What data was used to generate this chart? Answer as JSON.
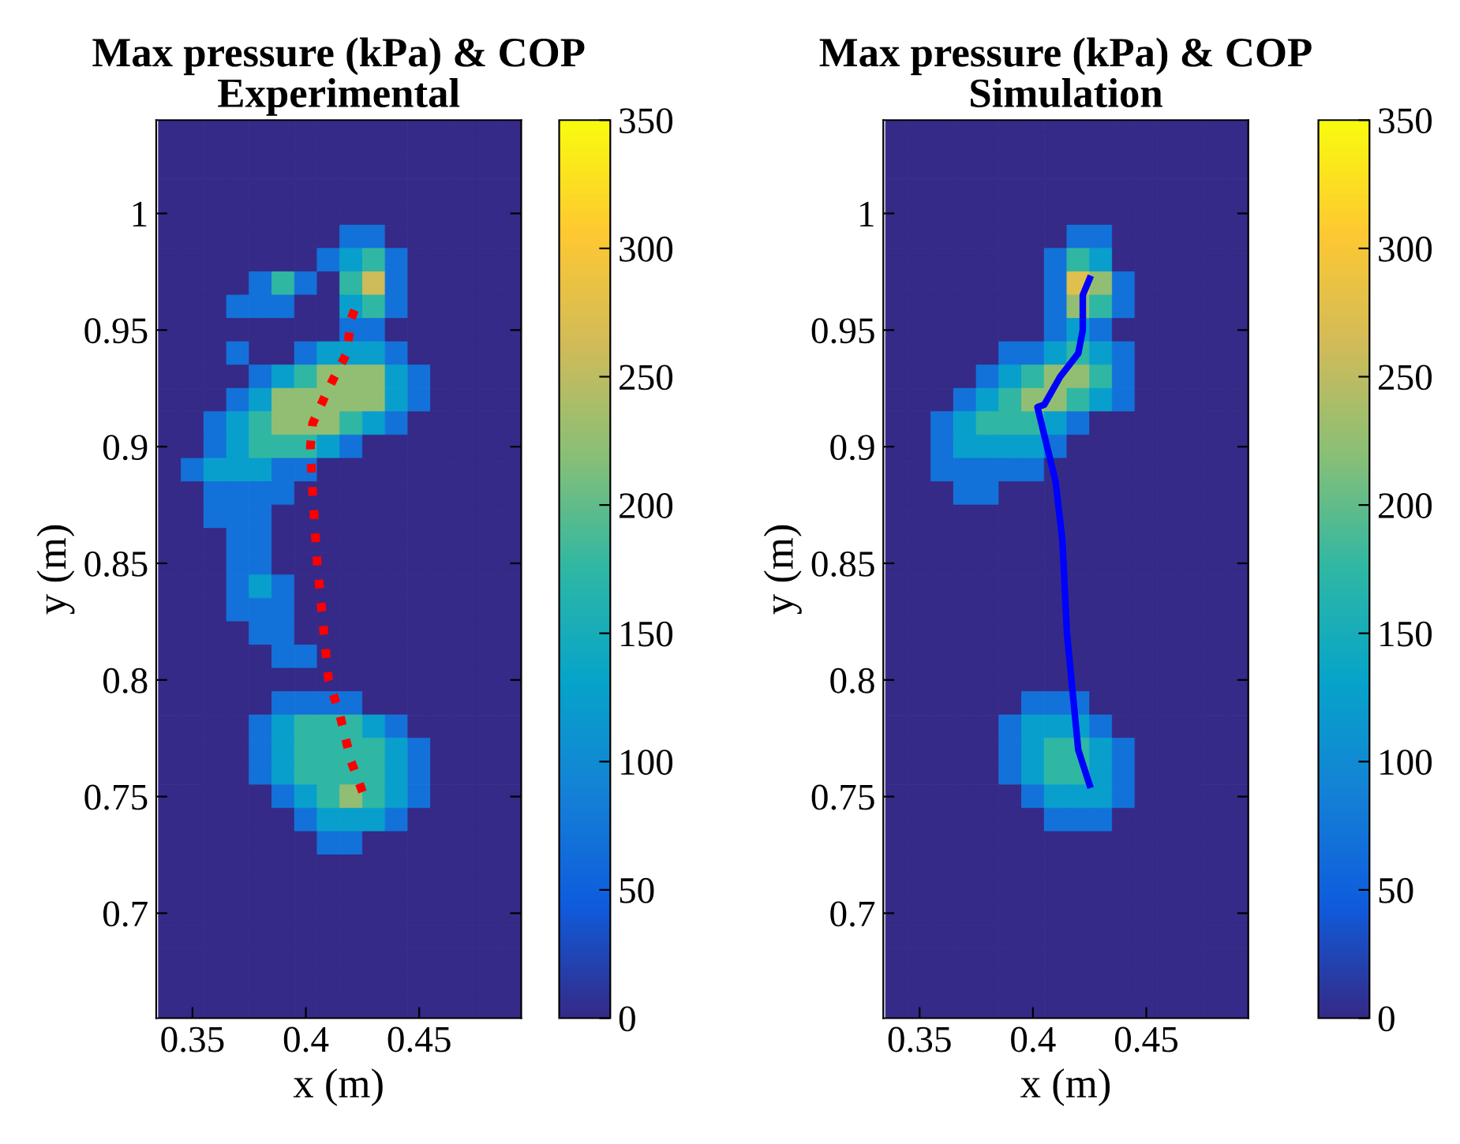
{
  "chart_data": [
    {
      "type": "heatmap",
      "title": "Max pressure (kPa) & COP\nExperimental",
      "xlabel": "x (m)",
      "ylabel": "y (m)",
      "x": [
        0.34,
        0.35,
        0.36,
        0.37,
        0.38,
        0.39,
        0.4,
        0.41,
        0.42,
        0.43,
        0.44,
        0.45,
        0.46,
        0.47,
        0.48,
        0.49
      ],
      "y": [
        1.04,
        1.03,
        1.02,
        1.01,
        1.0,
        0.99,
        0.98,
        0.97,
        0.96,
        0.95,
        0.94,
        0.93,
        0.92,
        0.91,
        0.9,
        0.89,
        0.88,
        0.87,
        0.86,
        0.85,
        0.84,
        0.83,
        0.82,
        0.81,
        0.8,
        0.79,
        0.78,
        0.77,
        0.76,
        0.75,
        0.74,
        0.73,
        0.72,
        0.71,
        0.7,
        0.69,
        0.68,
        0.67,
        0.66
      ],
      "cells": [
        [
          0,
          0,
          0,
          0,
          0,
          0,
          0,
          0,
          0,
          0,
          0,
          0,
          0,
          0,
          0,
          0
        ],
        [
          0,
          0,
          0,
          0,
          0,
          0,
          0,
          0,
          0,
          0,
          0,
          0,
          0,
          0,
          0,
          0
        ],
        [
          0,
          0,
          0,
          0,
          0,
          0,
          0,
          0,
          0,
          0,
          0,
          0,
          0,
          0,
          0,
          0
        ],
        [
          0,
          0,
          0,
          0,
          0,
          0,
          0,
          0,
          0,
          0,
          0,
          0,
          0,
          0,
          0,
          0
        ],
        [
          0,
          0,
          0,
          0,
          0,
          0,
          0,
          0,
          0,
          0,
          0,
          0,
          0,
          0,
          0,
          0
        ],
        [
          0,
          0,
          0,
          0,
          0,
          0,
          0,
          0,
          70,
          70,
          0,
          0,
          0,
          0,
          0,
          0
        ],
        [
          0,
          0,
          0,
          0,
          0,
          0,
          0,
          70,
          125,
          175,
          70,
          0,
          0,
          0,
          0,
          0
        ],
        [
          0,
          0,
          0,
          0,
          70,
          175,
          70,
          0,
          175,
          260,
          70,
          0,
          0,
          0,
          0,
          0
        ],
        [
          0,
          0,
          0,
          70,
          70,
          70,
          0,
          0,
          125,
          175,
          70,
          0,
          0,
          0,
          0,
          0
        ],
        [
          0,
          0,
          0,
          0,
          0,
          0,
          0,
          0,
          70,
          70,
          0,
          0,
          0,
          0,
          0,
          0
        ],
        [
          0,
          0,
          0,
          70,
          0,
          0,
          70,
          125,
          125,
          125,
          70,
          0,
          0,
          0,
          0,
          0
        ],
        [
          0,
          0,
          0,
          0,
          70,
          125,
          175,
          225,
          225,
          225,
          125,
          70,
          0,
          0,
          0,
          0
        ],
        [
          0,
          0,
          0,
          70,
          125,
          225,
          225,
          225,
          225,
          225,
          125,
          70,
          0,
          0,
          0,
          0
        ],
        [
          0,
          0,
          70,
          125,
          175,
          225,
          225,
          225,
          175,
          125,
          70,
          0,
          0,
          0,
          0,
          0
        ],
        [
          0,
          0,
          70,
          125,
          175,
          175,
          175,
          125,
          70,
          0,
          0,
          0,
          0,
          0,
          0,
          0
        ],
        [
          0,
          70,
          125,
          125,
          125,
          70,
          70,
          0,
          0,
          0,
          0,
          0,
          0,
          0,
          0,
          0
        ],
        [
          0,
          0,
          70,
          70,
          70,
          70,
          0,
          0,
          0,
          0,
          0,
          0,
          0,
          0,
          0,
          0
        ],
        [
          0,
          0,
          70,
          70,
          70,
          0,
          0,
          0,
          0,
          0,
          0,
          0,
          0,
          0,
          0,
          0
        ],
        [
          0,
          0,
          0,
          70,
          70,
          0,
          0,
          0,
          0,
          0,
          0,
          0,
          0,
          0,
          0,
          0
        ],
        [
          0,
          0,
          0,
          70,
          70,
          0,
          0,
          0,
          0,
          0,
          0,
          0,
          0,
          0,
          0,
          0
        ],
        [
          0,
          0,
          0,
          70,
          125,
          70,
          0,
          0,
          0,
          0,
          0,
          0,
          0,
          0,
          0,
          0
        ],
        [
          0,
          0,
          0,
          70,
          70,
          70,
          0,
          0,
          0,
          0,
          0,
          0,
          0,
          0,
          0,
          0
        ],
        [
          0,
          0,
          0,
          0,
          70,
          70,
          0,
          0,
          0,
          0,
          0,
          0,
          0,
          0,
          0,
          0
        ],
        [
          0,
          0,
          0,
          0,
          0,
          70,
          70,
          0,
          0,
          0,
          0,
          0,
          0,
          0,
          0,
          0
        ],
        [
          0,
          0,
          0,
          0,
          0,
          0,
          0,
          0,
          0,
          0,
          0,
          0,
          0,
          0,
          0,
          0
        ],
        [
          0,
          0,
          0,
          0,
          0,
          70,
          70,
          70,
          70,
          0,
          0,
          0,
          0,
          0,
          0,
          0
        ],
        [
          0,
          0,
          0,
          0,
          70,
          125,
          175,
          175,
          175,
          125,
          70,
          0,
          0,
          0,
          0,
          0
        ],
        [
          0,
          0,
          0,
          0,
          70,
          125,
          175,
          175,
          175,
          175,
          125,
          70,
          0,
          0,
          0,
          0
        ],
        [
          0,
          0,
          0,
          0,
          70,
          125,
          175,
          175,
          175,
          175,
          125,
          70,
          0,
          0,
          0,
          0
        ],
        [
          0,
          0,
          0,
          0,
          0,
          70,
          125,
          175,
          225,
          175,
          125,
          70,
          0,
          0,
          0,
          0
        ],
        [
          0,
          0,
          0,
          0,
          0,
          0,
          70,
          125,
          125,
          125,
          70,
          0,
          0,
          0,
          0,
          0
        ],
        [
          0,
          0,
          0,
          0,
          0,
          0,
          0,
          70,
          70,
          0,
          0,
          0,
          0,
          0,
          0,
          0
        ],
        [
          0,
          0,
          0,
          0,
          0,
          0,
          0,
          0,
          0,
          0,
          0,
          0,
          0,
          0,
          0,
          0
        ],
        [
          0,
          0,
          0,
          0,
          0,
          0,
          0,
          0,
          0,
          0,
          0,
          0,
          0,
          0,
          0,
          0
        ],
        [
          0,
          0,
          0,
          0,
          0,
          0,
          0,
          0,
          0,
          0,
          0,
          0,
          0,
          0,
          0,
          0
        ],
        [
          0,
          0,
          0,
          0,
          0,
          0,
          0,
          0,
          0,
          0,
          0,
          0,
          0,
          0,
          0,
          0
        ],
        [
          0,
          0,
          0,
          0,
          0,
          0,
          0,
          0,
          0,
          0,
          0,
          0,
          0,
          0,
          0,
          0
        ],
        [
          0,
          0,
          0,
          0,
          0,
          0,
          0,
          0,
          0,
          0,
          0,
          0,
          0,
          0,
          0,
          0
        ],
        [
          0,
          0,
          0,
          0,
          0,
          0,
          0,
          0,
          0,
          0,
          0,
          0,
          0,
          0,
          0,
          0
        ]
      ],
      "clim": [
        0,
        350
      ],
      "cticks": [
        0,
        50,
        100,
        150,
        200,
        250,
        300,
        350
      ],
      "xlim": [
        0.334,
        0.495
      ],
      "xticks": [
        0.35,
        0.4,
        0.45
      ],
      "ylim": [
        0.655,
        1.04
      ],
      "yticks": [
        0.7,
        0.75,
        0.8,
        0.85,
        0.9,
        0.95,
        1
      ],
      "series": [
        {
          "type": "line",
          "color": "#ff0000",
          "line_style": "dotted",
          "x": [
            0.425,
            0.42,
            0.415,
            0.41,
            0.408,
            0.405,
            0.403,
            0.402,
            0.403,
            0.41,
            0.418,
            0.42,
            0.423
          ],
          "values": [
            0.752,
            0.765,
            0.785,
            0.8,
            0.82,
            0.85,
            0.88,
            0.9,
            0.91,
            0.925,
            0.94,
            0.955,
            0.962
          ]
        }
      ]
    },
    {
      "type": "heatmap",
      "title": "Max pressure (kPa) & COP\nSimulation",
      "xlabel": "x (m)",
      "ylabel": "y (m)",
      "x": [
        0.34,
        0.35,
        0.36,
        0.37,
        0.38,
        0.39,
        0.4,
        0.41,
        0.42,
        0.43,
        0.44,
        0.45,
        0.46,
        0.47,
        0.48,
        0.49
      ],
      "y": [
        1.04,
        1.03,
        1.02,
        1.01,
        1.0,
        0.99,
        0.98,
        0.97,
        0.96,
        0.95,
        0.94,
        0.93,
        0.92,
        0.91,
        0.9,
        0.89,
        0.88,
        0.87,
        0.86,
        0.85,
        0.84,
        0.83,
        0.82,
        0.81,
        0.8,
        0.79,
        0.78,
        0.77,
        0.76,
        0.75,
        0.74,
        0.73,
        0.72,
        0.71,
        0.7,
        0.69,
        0.68,
        0.67,
        0.66
      ],
      "cells": [
        [
          0,
          0,
          0,
          0,
          0,
          0,
          0,
          0,
          0,
          0,
          0,
          0,
          0,
          0,
          0,
          0
        ],
        [
          0,
          0,
          0,
          0,
          0,
          0,
          0,
          0,
          0,
          0,
          0,
          0,
          0,
          0,
          0,
          0
        ],
        [
          0,
          0,
          0,
          0,
          0,
          0,
          0,
          0,
          0,
          0,
          0,
          0,
          0,
          0,
          0,
          0
        ],
        [
          0,
          0,
          0,
          0,
          0,
          0,
          0,
          0,
          0,
          0,
          0,
          0,
          0,
          0,
          0,
          0
        ],
        [
          0,
          0,
          0,
          0,
          0,
          0,
          0,
          0,
          0,
          0,
          0,
          0,
          0,
          0,
          0,
          0
        ],
        [
          0,
          0,
          0,
          0,
          0,
          0,
          0,
          0,
          70,
          70,
          0,
          0,
          0,
          0,
          0,
          0
        ],
        [
          0,
          0,
          0,
          0,
          0,
          0,
          0,
          70,
          175,
          125,
          0,
          0,
          0,
          0,
          0,
          0
        ],
        [
          0,
          0,
          0,
          0,
          0,
          0,
          0,
          70,
          275,
          225,
          70,
          0,
          0,
          0,
          0,
          0
        ],
        [
          0,
          0,
          0,
          0,
          0,
          0,
          0,
          70,
          225,
          175,
          70,
          0,
          0,
          0,
          0,
          0
        ],
        [
          0,
          0,
          0,
          0,
          0,
          0,
          0,
          70,
          125,
          70,
          0,
          0,
          0,
          0,
          0,
          0
        ],
        [
          0,
          0,
          0,
          0,
          0,
          70,
          70,
          125,
          175,
          125,
          70,
          0,
          0,
          0,
          0,
          0
        ],
        [
          0,
          0,
          0,
          0,
          70,
          125,
          175,
          225,
          225,
          175,
          70,
          0,
          0,
          0,
          0,
          0
        ],
        [
          0,
          0,
          0,
          70,
          125,
          175,
          225,
          225,
          175,
          125,
          70,
          0,
          0,
          0,
          0,
          0
        ],
        [
          0,
          0,
          70,
          125,
          175,
          175,
          175,
          125,
          70,
          0,
          0,
          0,
          0,
          0,
          0,
          0
        ],
        [
          0,
          0,
          70,
          125,
          125,
          125,
          125,
          70,
          0,
          0,
          0,
          0,
          0,
          0,
          0,
          0
        ],
        [
          0,
          0,
          70,
          70,
          70,
          70,
          70,
          0,
          0,
          0,
          0,
          0,
          0,
          0,
          0,
          0
        ],
        [
          0,
          0,
          0,
          70,
          70,
          0,
          0,
          0,
          0,
          0,
          0,
          0,
          0,
          0,
          0,
          0
        ],
        [
          0,
          0,
          0,
          0,
          0,
          0,
          0,
          0,
          0,
          0,
          0,
          0,
          0,
          0,
          0,
          0
        ],
        [
          0,
          0,
          0,
          0,
          0,
          0,
          0,
          0,
          0,
          0,
          0,
          0,
          0,
          0,
          0,
          0
        ],
        [
          0,
          0,
          0,
          0,
          0,
          0,
          0,
          0,
          0,
          0,
          0,
          0,
          0,
          0,
          0,
          0
        ],
        [
          0,
          0,
          0,
          0,
          0,
          0,
          0,
          0,
          0,
          0,
          0,
          0,
          0,
          0,
          0,
          0
        ],
        [
          0,
          0,
          0,
          0,
          0,
          0,
          0,
          0,
          0,
          0,
          0,
          0,
          0,
          0,
          0,
          0
        ],
        [
          0,
          0,
          0,
          0,
          0,
          0,
          0,
          0,
          0,
          0,
          0,
          0,
          0,
          0,
          0,
          0
        ],
        [
          0,
          0,
          0,
          0,
          0,
          0,
          0,
          0,
          0,
          0,
          0,
          0,
          0,
          0,
          0,
          0
        ],
        [
          0,
          0,
          0,
          0,
          0,
          0,
          0,
          0,
          0,
          0,
          0,
          0,
          0,
          0,
          0,
          0
        ],
        [
          0,
          0,
          0,
          0,
          0,
          0,
          70,
          70,
          70,
          0,
          0,
          0,
          0,
          0,
          0,
          0
        ],
        [
          0,
          0,
          0,
          0,
          0,
          70,
          125,
          125,
          125,
          70,
          0,
          0,
          0,
          0,
          0,
          0
        ],
        [
          0,
          0,
          0,
          0,
          0,
          70,
          125,
          175,
          175,
          125,
          70,
          0,
          0,
          0,
          0,
          0
        ],
        [
          0,
          0,
          0,
          0,
          0,
          70,
          125,
          175,
          175,
          125,
          70,
          0,
          0,
          0,
          0,
          0
        ],
        [
          0,
          0,
          0,
          0,
          0,
          0,
          70,
          125,
          125,
          125,
          70,
          0,
          0,
          0,
          0,
          0
        ],
        [
          0,
          0,
          0,
          0,
          0,
          0,
          0,
          70,
          70,
          70,
          0,
          0,
          0,
          0,
          0,
          0
        ],
        [
          0,
          0,
          0,
          0,
          0,
          0,
          0,
          0,
          0,
          0,
          0,
          0,
          0,
          0,
          0,
          0
        ],
        [
          0,
          0,
          0,
          0,
          0,
          0,
          0,
          0,
          0,
          0,
          0,
          0,
          0,
          0,
          0,
          0
        ],
        [
          0,
          0,
          0,
          0,
          0,
          0,
          0,
          0,
          0,
          0,
          0,
          0,
          0,
          0,
          0,
          0
        ],
        [
          0,
          0,
          0,
          0,
          0,
          0,
          0,
          0,
          0,
          0,
          0,
          0,
          0,
          0,
          0,
          0
        ],
        [
          0,
          0,
          0,
          0,
          0,
          0,
          0,
          0,
          0,
          0,
          0,
          0,
          0,
          0,
          0,
          0
        ],
        [
          0,
          0,
          0,
          0,
          0,
          0,
          0,
          0,
          0,
          0,
          0,
          0,
          0,
          0,
          0,
          0
        ],
        [
          0,
          0,
          0,
          0,
          0,
          0,
          0,
          0,
          0,
          0,
          0,
          0,
          0,
          0,
          0,
          0
        ],
        [
          0,
          0,
          0,
          0,
          0,
          0,
          0,
          0,
          0,
          0,
          0,
          0,
          0,
          0,
          0,
          0
        ]
      ],
      "clim": [
        0,
        350
      ],
      "cticks": [
        0,
        50,
        100,
        150,
        200,
        250,
        300,
        350
      ],
      "xlim": [
        0.334,
        0.495
      ],
      "xticks": [
        0.35,
        0.4,
        0.45
      ],
      "ylim": [
        0.655,
        1.04
      ],
      "yticks": [
        0.7,
        0.75,
        0.8,
        0.85,
        0.9,
        0.95,
        1
      ],
      "series": [
        {
          "type": "line",
          "color": "#0000ff",
          "line_style": "solid",
          "x": [
            0.425,
            0.42,
            0.418,
            0.415,
            0.413,
            0.41,
            0.402,
            0.405,
            0.412,
            0.42,
            0.422,
            0.422,
            0.425
          ],
          "values": [
            0.755,
            0.77,
            0.79,
            0.82,
            0.86,
            0.885,
            0.917,
            0.918,
            0.93,
            0.94,
            0.95,
            0.965,
            0.972
          ]
        }
      ]
    }
  ]
}
